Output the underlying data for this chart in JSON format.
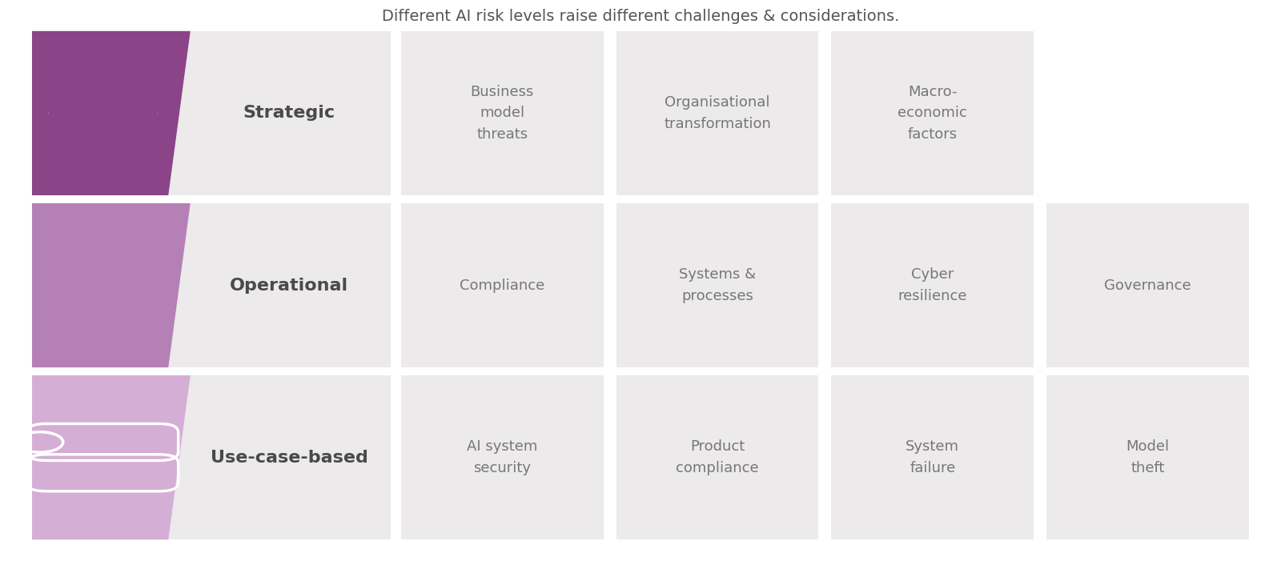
{
  "title": "Different AI risk levels raise different challenges & considerations.",
  "title_color": "#555555",
  "title_fontsize": 14,
  "background_color": "#ffffff",
  "row_bg_color": "#eceaea",
  "rows": [
    {
      "label": "Strategic",
      "label_fontsize": 16,
      "label_color": "#4a4a4a",
      "accent_color": "#8b4487",
      "items": [
        "Business\nmodel\nthreats",
        "Organisational\ntransformation",
        "Macro-\neconomic\nfactors",
        ""
      ]
    },
    {
      "label": "Operational",
      "label_fontsize": 16,
      "label_color": "#4a4a4a",
      "accent_color": "#b580b5",
      "items": [
        "Compliance",
        "Systems &\nprocesses",
        "Cyber\nresilience",
        "Governance"
      ]
    },
    {
      "label": "Use-case-based",
      "label_fontsize": 16,
      "label_color": "#4a4a4a",
      "accent_color": "#d4aed4",
      "items": [
        "AI system\nsecurity",
        "Product\ncompliance",
        "System\nfailure",
        "Model\ntheft"
      ]
    }
  ],
  "item_fontsize": 13,
  "item_color": "#777777"
}
